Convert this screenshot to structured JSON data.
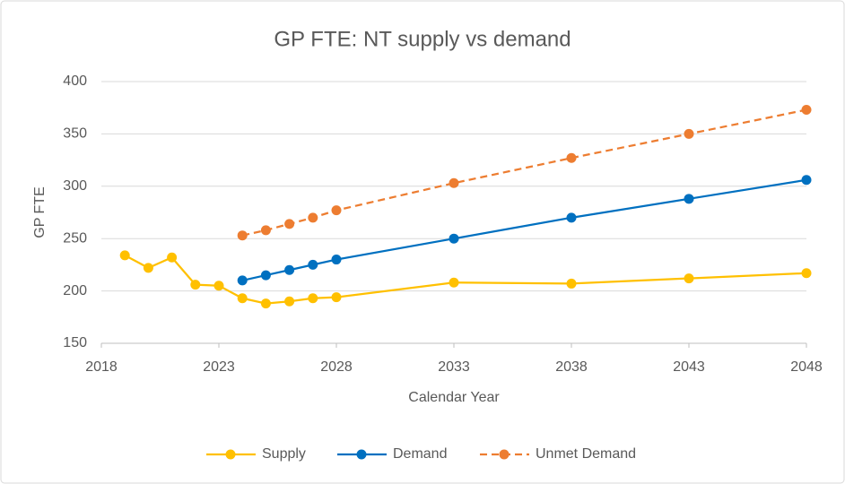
{
  "chart_data": {
    "type": "line",
    "title": "GP FTE: NT supply vs demand",
    "x_label": "Calendar Year",
    "y_label": "GP FTE",
    "x": [
      2019,
      2020,
      2021,
      2022,
      2023,
      2024,
      2025,
      2026,
      2027,
      2028,
      2033,
      2038,
      2043,
      2048
    ],
    "series": [
      {
        "name": "Supply",
        "color": "#FFC000",
        "dashed": false,
        "values": [
          234,
          222,
          232,
          206,
          205,
          193,
          188,
          190,
          193,
          194,
          208,
          207,
          212,
          217
        ]
      },
      {
        "name": "Demand",
        "color": "#0070C0",
        "dashed": false,
        "values": [
          null,
          null,
          null,
          null,
          null,
          210,
          215,
          220,
          225,
          230,
          250,
          270,
          288,
          306
        ]
      },
      {
        "name": "Unmet Demand",
        "color": "#ED7D31",
        "dashed": true,
        "values": [
          null,
          null,
          null,
          null,
          null,
          253,
          258,
          264,
          270,
          277,
          303,
          327,
          350,
          373
        ]
      }
    ],
    "xlim": [
      2018,
      2048
    ],
    "xticks": [
      2018,
      2023,
      2028,
      2033,
      2038,
      2043,
      2048
    ],
    "ylim": [
      150,
      400
    ],
    "yticks": [
      150,
      200,
      250,
      300,
      350,
      400
    ],
    "grid": true,
    "legend": "bottom"
  }
}
